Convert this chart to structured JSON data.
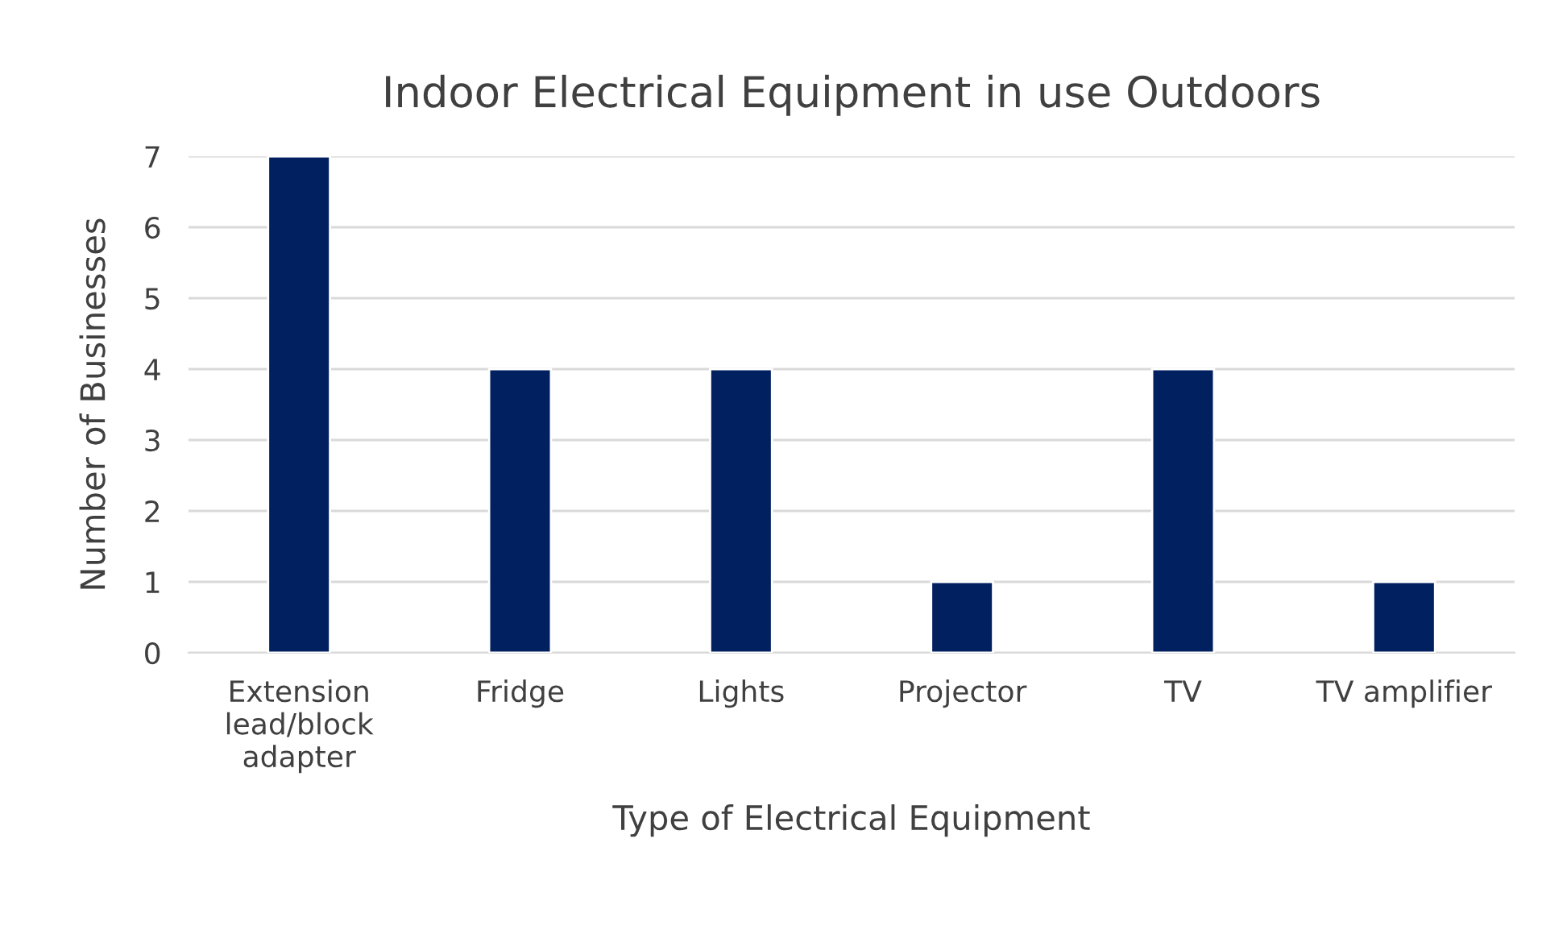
{
  "chart_data": {
    "type": "bar",
    "title": "Indoor Electrical Equipment in use Outdoors",
    "xlabel": "Type of Electrical Equipment",
    "ylabel": "Number of Businesses",
    "categories": [
      "Extension\nlead/block\nadapter",
      "Fridge",
      "Lights",
      "Projector",
      "TV",
      "TV amplifier"
    ],
    "values": [
      7,
      4,
      4,
      1,
      4,
      1
    ],
    "color": "#002060",
    "ylim": [
      0,
      7
    ],
    "yticks": [
      0,
      1,
      2,
      3,
      4,
      5,
      6,
      7
    ],
    "grid": "y",
    "legend": false
  }
}
